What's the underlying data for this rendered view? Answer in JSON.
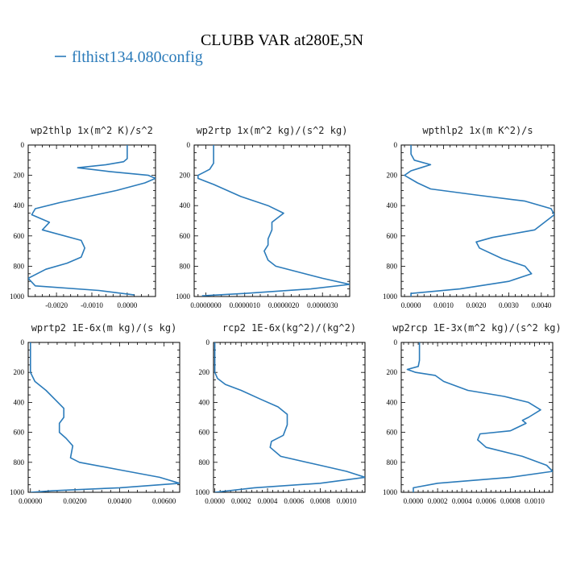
{
  "figure": {
    "title": "CLUBB VAR at280E,5N",
    "legend": {
      "label": "flthist134.080config",
      "color": "#2b7bba"
    }
  },
  "chart_data": [
    {
      "type": "line",
      "title": "wp2thlp   1x(m^2 K)/s^2",
      "xlim": [
        -0.0028,
        0.0008
      ],
      "ylim": [
        1000,
        0
      ],
      "xticks": [
        -0.002,
        -0.001,
        0.0
      ],
      "xtick_labels": [
        "-0.0020",
        "-0.0010",
        "0.0000"
      ],
      "yticks": [
        0,
        200,
        400,
        600,
        800,
        1000
      ],
      "ytick_labels": [
        "0",
        "200",
        "400",
        "600",
        "800",
        "1000"
      ],
      "series": [
        {
          "color": "#2b7bba",
          "x": [
            0.0,
            0.0,
            -0.0001,
            -0.0006,
            -0.0014,
            -0.0005,
            0.0006,
            0.0008,
            0.0005,
            -0.0003,
            -0.0011,
            -0.0019,
            -0.0026,
            -0.0027,
            -0.0022,
            -0.0024,
            -0.0013,
            -0.0012,
            -0.0013,
            -0.0017,
            -0.0023,
            -0.0028,
            -0.0026,
            -0.0008,
            0.0002
          ],
          "y": [
            0,
            90,
            110,
            130,
            150,
            175,
            200,
            220,
            250,
            300,
            340,
            380,
            420,
            460,
            510,
            560,
            630,
            680,
            740,
            780,
            820,
            880,
            930,
            960,
            990
          ]
        }
      ]
    },
    {
      "type": "line",
      "title": "wp2rtp   1x(m^2 kg)/(s^2 kg)",
      "xlim": [
        -3e-07,
        3.7e-06
      ],
      "ylim": [
        1000,
        0
      ],
      "xticks": [
        0.0,
        1e-06,
        2e-06,
        3e-06
      ],
      "xtick_labels": [
        "0.0000000",
        "0.0000010",
        "0.0000020",
        "0.0000030"
      ],
      "yticks": [
        0,
        200,
        400,
        600,
        800,
        1000
      ],
      "ytick_labels": [
        "0",
        "200",
        "400",
        "600",
        "800",
        "1000"
      ],
      "series": [
        {
          "color": "#2b7bba",
          "x": [
            2e-07,
            2e-07,
            2e-07,
            1e-07,
            -2e-07,
            -2e-07,
            2e-07,
            9e-07,
            1.6e-06,
            2e-06,
            1.7e-06,
            1.7e-06,
            1.6e-06,
            1.6e-06,
            1.5e-06,
            1.6e-06,
            1.8e-06,
            3e-06,
            3.7e-06,
            2.7e-06,
            1e-06,
            -1e-07
          ],
          "y": [
            0,
            80,
            120,
            160,
            200,
            220,
            260,
            340,
            400,
            450,
            510,
            560,
            620,
            660,
            700,
            760,
            800,
            880,
            920,
            950,
            980,
            995
          ]
        }
      ]
    },
    {
      "type": "line",
      "title": "wpthlp2   1x(m K^2)/s",
      "xlim": [
        -0.0003,
        0.0044
      ],
      "ylim": [
        1000,
        0
      ],
      "xticks": [
        0.0,
        0.001,
        0.002,
        0.003,
        0.004
      ],
      "xtick_labels": [
        "0.0000",
        "0.0010",
        "0.0020",
        "0.0030",
        "0.0040"
      ],
      "yticks": [
        0,
        200,
        400,
        600,
        800,
        1000
      ],
      "ytick_labels": [
        "0",
        "200",
        "400",
        "600",
        "800",
        "1000"
      ],
      "series": [
        {
          "color": "#2b7bba",
          "x": [
            0.0,
            0.0,
            0.0001,
            0.0006,
            0.0003,
            0.0,
            -0.0002,
            0.0002,
            0.0006,
            0.002,
            0.0035,
            0.0043,
            0.0044,
            0.0038,
            0.0025,
            0.002,
            0.0021,
            0.0028,
            0.0035,
            0.0037,
            0.003,
            0.0015,
            0.0,
            0.0
          ],
          "y": [
            0,
            60,
            100,
            130,
            150,
            170,
            200,
            250,
            290,
            330,
            370,
            420,
            460,
            560,
            610,
            640,
            680,
            750,
            800,
            850,
            900,
            950,
            980,
            1000
          ]
        }
      ]
    },
    {
      "type": "line",
      "title": "wprtp2   1E-6x(m kg)/(s kg)",
      "xlim": [
        -0.0001,
        0.0067
      ],
      "ylim": [
        1000,
        0
      ],
      "xticks": [
        0.0,
        0.002,
        0.004,
        0.006
      ],
      "xtick_labels": [
        "0.00000",
        "0.00200",
        "0.00400",
        "0.00600"
      ],
      "yticks": [
        0,
        200,
        400,
        600,
        800,
        1000
      ],
      "ytick_labels": [
        "0",
        "200",
        "400",
        "600",
        "800",
        "1000"
      ],
      "series": [
        {
          "color": "#2b7bba",
          "x": [
            0.0,
            0.0,
            0.0,
            0.0002,
            0.0007,
            0.0011,
            0.0015,
            0.0015,
            0.0013,
            0.0013,
            0.0016,
            0.0019,
            0.0018,
            0.0022,
            0.004,
            0.0058,
            0.0067,
            0.004,
            0.001,
            0.0
          ],
          "y": [
            0,
            100,
            200,
            260,
            320,
            380,
            440,
            500,
            540,
            600,
            640,
            690,
            770,
            800,
            850,
            900,
            940,
            970,
            990,
            1000
          ]
        }
      ]
    },
    {
      "type": "line",
      "title": "rcp2   1E-6x(kg^2)/(kg^2)",
      "xlim": [
        -1e-05,
        0.00114
      ],
      "ylim": [
        1000,
        0
      ],
      "xticks": [
        0.0,
        0.0002,
        0.0004,
        0.0006,
        0.0008,
        0.001
      ],
      "xtick_labels": [
        "0.0000",
        "0.0002",
        "0.0004",
        "0.0006",
        "0.0008",
        "0.0010"
      ],
      "yticks": [
        0,
        200,
        400,
        600,
        800,
        1000
      ],
      "ytick_labels": [
        "0",
        "200",
        "400",
        "600",
        "800",
        "1000"
      ],
      "series": [
        {
          "color": "#2b7bba",
          "x": [
            0.0,
            0.0,
            0.0,
            2e-05,
            8e-05,
            0.0002,
            0.00035,
            0.00048,
            0.00055,
            0.00055,
            0.00052,
            0.00043,
            0.00042,
            0.0005,
            0.0008,
            0.001,
            0.00114,
            0.0008,
            0.0003,
            0.0
          ],
          "y": [
            0,
            100,
            200,
            240,
            280,
            320,
            380,
            430,
            480,
            550,
            620,
            660,
            700,
            760,
            820,
            860,
            900,
            940,
            970,
            1000
          ]
        }
      ]
    },
    {
      "type": "line",
      "title": "wp2rcp   1E-3x(m^2 kg)/(s^2 kg)",
      "xlim": [
        -0.0001,
        0.00115
      ],
      "ylim": [
        1000,
        0
      ],
      "xticks": [
        0.0,
        0.0002,
        0.0004,
        0.0006,
        0.0008,
        0.001
      ],
      "xtick_labels": [
        "0.0000",
        "0.0002",
        "0.0004",
        "0.0006",
        "0.0008",
        "0.0010"
      ],
      "yticks": [
        0,
        200,
        400,
        600,
        800,
        1000
      ],
      "ytick_labels": [
        "0",
        "200",
        "400",
        "600",
        "800",
        "1000"
      ],
      "series": [
        {
          "color": "#2b7bba",
          "x": [
            5e-05,
            5e-05,
            4e-05,
            -5e-05,
            2e-05,
            0.00018,
            0.00025,
            0.00045,
            0.00075,
            0.00095,
            0.00105,
            0.00095,
            0.0009,
            0.00093,
            0.0008,
            0.00055,
            0.00053,
            0.0006,
            0.0009,
            0.0011,
            0.00115,
            0.0008,
            0.0002,
            0.0,
            0.0
          ],
          "y": [
            0,
            120,
            160,
            180,
            200,
            220,
            260,
            320,
            360,
            400,
            450,
            500,
            520,
            540,
            590,
            610,
            650,
            700,
            760,
            820,
            860,
            900,
            940,
            970,
            1000
          ]
        }
      ]
    }
  ]
}
